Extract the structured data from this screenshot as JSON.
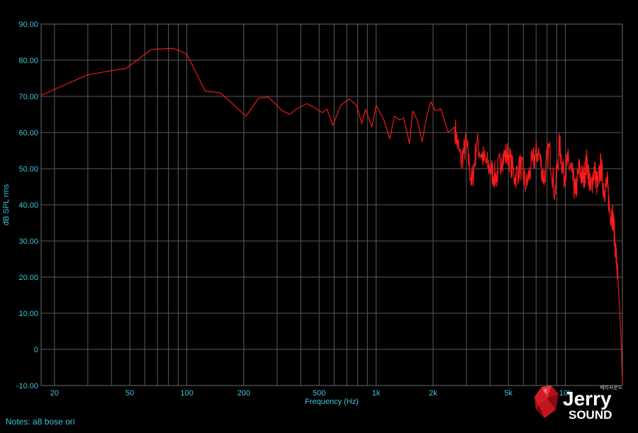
{
  "notes": {
    "label": "Notes:",
    "text": "a8 bose ori"
  },
  "logo": {
    "name": "Jerry",
    "sub": "SOUND",
    "korean": "제리사운드"
  },
  "colors": {
    "background": "#000000",
    "grid": "#5a5a5a",
    "text": "#3fc6d8",
    "line": "#ff1a1a"
  },
  "chart_data": {
    "type": "line",
    "xlabel": "Frequency (Hz)",
    "ylabel": "dB SPL rms",
    "xscale": "log",
    "xlim": [
      17,
      20000
    ],
    "ylim": [
      -10,
      90
    ],
    "grid": true,
    "xticks": [
      20,
      50,
      100,
      200,
      500,
      1000,
      2000,
      5000,
      10000
    ],
    "xtick_labels": [
      "20",
      "50",
      "100",
      "200",
      "500",
      "1k",
      "2k",
      "5k",
      "10k"
    ],
    "yticks": [
      -10,
      0,
      10,
      20,
      30,
      40,
      50,
      60,
      70,
      80,
      90
    ],
    "ytick_labels": [
      "-10.00",
      "0",
      "10.00",
      "20.00",
      "30.00",
      "40.00",
      "50.00",
      "60.00",
      "70.00",
      "80.00",
      "90.00"
    ],
    "series": [
      {
        "color": "#ff1a1a",
        "x": [
          17,
          30,
          48,
          65,
          85,
          100,
          125,
          150,
          170,
          205,
          240,
          270,
          320,
          350,
          380,
          430,
          470,
          520,
          550,
          590,
          650,
          720,
          790,
          840,
          880,
          950,
          1000,
          1100,
          1180,
          1250,
          1330,
          1400,
          1500,
          1560,
          1650,
          1750,
          1850,
          1950,
          2050,
          2200,
          2400,
          2600,
          2800,
          3000,
          3200,
          3400,
          3700,
          4000,
          4300,
          4600,
          5000,
          5400,
          5800,
          6200,
          6700,
          7200,
          7700,
          8200,
          8800,
          9300,
          9800,
          10300,
          10800,
          11300,
          11800,
          12400,
          13000,
          13600,
          14200,
          14800,
          15400,
          16000,
          16600,
          17200,
          17800,
          18400,
          19000,
          19600,
          20000
        ],
        "y": [
          70.3,
          76,
          77.8,
          83,
          83.3,
          81.7,
          71.5,
          71,
          68.5,
          64.5,
          69.5,
          69.8,
          66,
          65,
          66.5,
          68,
          67,
          65.5,
          66.5,
          62,
          67.5,
          69.3,
          67.5,
          62.5,
          66.5,
          61.5,
          67.5,
          63.5,
          58.3,
          64.5,
          63.5,
          64,
          57,
          66,
          63.5,
          57.5,
          64.5,
          68.5,
          66,
          66.5,
          60,
          61.5,
          52,
          57,
          45.5,
          57,
          52.5,
          50,
          47.5,
          53,
          54,
          47.5,
          51,
          45,
          52,
          55,
          47,
          56,
          43,
          57,
          48,
          52,
          49,
          43,
          50,
          47,
          52,
          44,
          50,
          45,
          51,
          44,
          46,
          38,
          37,
          28,
          18,
          5,
          -9
        ]
      }
    ]
  }
}
